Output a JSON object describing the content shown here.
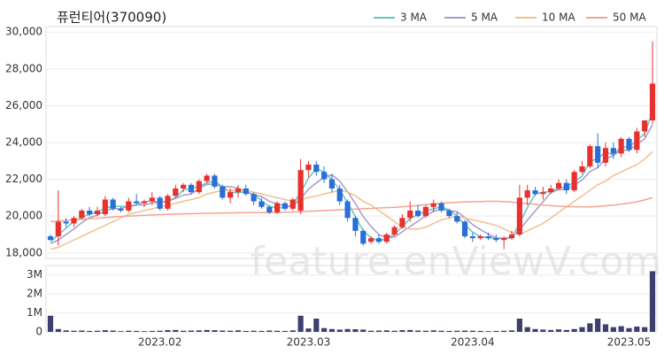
{
  "chart_data": {
    "type": "candlestick",
    "title": "퓨런티어(370090)",
    "watermark": "feature.enViewV.com",
    "legend": "top-right",
    "up_color": "#e8312f",
    "down_color": "#2a6fd6",
    "categories": [
      null,
      null,
      null,
      null,
      null,
      null,
      null,
      null,
      null,
      null,
      null,
      null,
      null,
      null,
      "2023.02",
      null,
      null,
      null,
      null,
      null,
      null,
      null,
      null,
      null,
      null,
      null,
      null,
      null,
      null,
      null,
      null,
      null,
      null,
      "2023.03",
      null,
      null,
      null,
      null,
      null,
      null,
      null,
      null,
      null,
      null,
      null,
      null,
      null,
      null,
      null,
      null,
      null,
      null,
      null,
      null,
      "2023.04",
      null,
      null,
      null,
      null,
      null,
      null,
      null,
      null,
      null,
      null,
      null,
      null,
      null,
      null,
      null,
      null,
      null,
      null,
      null,
      "2023.05",
      null,
      null,
      null
    ],
    "open": [
      18900,
      18900,
      19700,
      19600,
      19900,
      20300,
      20100,
      20100,
      20900,
      20400,
      20300,
      20800,
      20700,
      20800,
      21000,
      20400,
      21100,
      21500,
      21700,
      21300,
      21900,
      22200,
      21600,
      21000,
      21300,
      21500,
      21200,
      20800,
      20500,
      20200,
      20700,
      20400,
      20300,
      22500,
      22800,
      22400,
      22000,
      21500,
      20800,
      19900,
      19200,
      18600,
      18800,
      18600,
      19000,
      19400,
      19900,
      20300,
      20000,
      20500,
      20700,
      20300,
      20000,
      19700,
      18900,
      18800,
      18900,
      18800,
      18700,
      18800,
      19000,
      21000,
      21400,
      21200,
      21300,
      21500,
      21800,
      21400,
      22400,
      22700,
      23800,
      22900,
      23700,
      23400,
      24200,
      23600,
      24600,
      25200
    ],
    "high": [
      19000,
      21400,
      19900,
      20000,
      20400,
      20500,
      20500,
      21100,
      21000,
      20500,
      21000,
      21200,
      20900,
      21300,
      21100,
      21200,
      21700,
      21800,
      21800,
      22000,
      22300,
      22300,
      21700,
      21500,
      21700,
      21700,
      21300,
      21000,
      20600,
      20800,
      20800,
      21000,
      23100,
      23000,
      23000,
      22700,
      22300,
      21700,
      20900,
      20000,
      19300,
      18900,
      19000,
      19100,
      19500,
      20100,
      20800,
      20600,
      20600,
      20900,
      20800,
      20400,
      20200,
      19800,
      19100,
      19000,
      19100,
      19000,
      18900,
      19200,
      21700,
      21700,
      21600,
      21600,
      21700,
      22000,
      22000,
      22500,
      23000,
      23900,
      24500,
      24000,
      24000,
      24300,
      24300,
      24800,
      25200,
      29500
    ],
    "low": [
      18700,
      18400,
      19400,
      19400,
      19800,
      20000,
      20000,
      20000,
      20300,
      20200,
      20200,
      20600,
      20500,
      20600,
      20300,
      20300,
      21000,
      21300,
      21200,
      21200,
      21800,
      21500,
      20900,
      20700,
      21000,
      21100,
      20600,
      20400,
      20100,
      20100,
      20300,
      20300,
      20100,
      22100,
      22200,
      21800,
      21300,
      20600,
      19700,
      18900,
      18400,
      18500,
      18500,
      18500,
      18900,
      19300,
      19700,
      19900,
      19900,
      20200,
      20200,
      19900,
      19600,
      18800,
      18600,
      18700,
      18700,
      18600,
      18200,
      18700,
      18900,
      20600,
      21100,
      20900,
      21200,
      21400,
      21200,
      21300,
      22300,
      22600,
      22600,
      22700,
      23100,
      23200,
      23500,
      23400,
      24300,
      25000
    ],
    "close": [
      18700,
      19700,
      19600,
      19900,
      20300,
      20100,
      20300,
      20900,
      20400,
      20300,
      20800,
      20700,
      20800,
      21000,
      20400,
      21100,
      21500,
      21700,
      21300,
      21900,
      22200,
      21600,
      21000,
      21300,
      21500,
      21200,
      20800,
      20500,
      20200,
      20700,
      20400,
      20900,
      22500,
      22800,
      22400,
      22000,
      21500,
      20800,
      19900,
      19200,
      18500,
      18800,
      18600,
      19000,
      19400,
      19900,
      20300,
      20000,
      20500,
      20700,
      20300,
      20000,
      19700,
      18900,
      18800,
      18900,
      18800,
      18700,
      18800,
      19000,
      21000,
      21400,
      21200,
      21300,
      21500,
      21800,
      21400,
      22400,
      22700,
      23800,
      22900,
      23700,
      23400,
      24200,
      23600,
      24600,
      25200,
      27200
    ],
    "ylim": [
      17700,
      30300
    ],
    "yticks": [
      {
        "value": 18000,
        "label": "18,000"
      },
      {
        "value": 20000,
        "label": "20,000"
      },
      {
        "value": 22000,
        "label": "22,000"
      },
      {
        "value": 24000,
        "label": "24,000"
      },
      {
        "value": 26000,
        "label": "26,000"
      },
      {
        "value": 28000,
        "label": "28,000"
      },
      {
        "value": 30000,
        "label": "30,000"
      }
    ],
    "grid": true,
    "series": [
      {
        "name": "3 MA",
        "color": "#5cc8c8",
        "values": [
          18600,
          19000,
          19330,
          19730,
          19930,
          20100,
          20230,
          20430,
          20530,
          20530,
          20500,
          20600,
          20770,
          20830,
          20730,
          20830,
          21000,
          21430,
          21500,
          21630,
          21800,
          21900,
          21600,
          21300,
          21270,
          21330,
          21170,
          20830,
          20500,
          20470,
          20430,
          20670,
          21270,
          22070,
          22570,
          22400,
          21970,
          21430,
          20730,
          19970,
          19200,
          18830,
          18630,
          18800,
          19000,
          19430,
          19870,
          20070,
          20270,
          20400,
          20500,
          20330,
          20000,
          19530,
          19130,
          18870,
          18830,
          18800,
          18770,
          18830,
          19600,
          20470,
          21200,
          21300,
          21330,
          21530,
          21570,
          21870,
          22170,
          22970,
          23130,
          23470,
          23330,
          23770,
          23730,
          24130,
          24470,
          25670
        ]
      },
      {
        "name": "5 MA",
        "color": "#a99bcb",
        "values": [
          18500,
          18700,
          19000,
          19300,
          19640,
          19920,
          20040,
          20300,
          20400,
          20400,
          20540,
          20620,
          20600,
          20720,
          20740,
          20800,
          20960,
          21140,
          21200,
          21500,
          21720,
          21740,
          21600,
          21600,
          21520,
          21320,
          21160,
          21060,
          20800,
          20680,
          20520,
          20540,
          20940,
          21460,
          21800,
          22120,
          22240,
          21900,
          21320,
          20680,
          19980,
          19440,
          19000,
          18820,
          18860,
          19140,
          19440,
          19720,
          20020,
          20280,
          20360,
          20300,
          20240,
          19920,
          19540,
          19260,
          19020,
          18820,
          18800,
          18840,
          19260,
          19780,
          20280,
          20780,
          21280,
          21440,
          21440,
          21680,
          21960,
          22420,
          22640,
          23100,
          23300,
          23600,
          23560,
          23900,
          24200,
          24960
        ]
      },
      {
        "name": "10 MA",
        "color": "#f0c090",
        "values": [
          18200,
          18300,
          18500,
          18700,
          18900,
          19100,
          19300,
          19500,
          19700,
          19900,
          20100,
          20200,
          20300,
          20400,
          20500,
          20600,
          20700,
          20800,
          20900,
          21000,
          21200,
          21300,
          21400,
          21400,
          21400,
          21400,
          21300,
          21200,
          21100,
          21000,
          20900,
          20800,
          20900,
          21000,
          21100,
          21200,
          21300,
          21400,
          21300,
          21100,
          20800,
          20600,
          20300,
          20000,
          19700,
          19400,
          19300,
          19300,
          19400,
          19600,
          19800,
          19900,
          20000,
          19900,
          19800,
          19700,
          19600,
          19500,
          19300,
          19100,
          19000,
          19200,
          19400,
          19600,
          19900,
          20200,
          20500,
          20800,
          21100,
          21400,
          21700,
          21900,
          22200,
          22400,
          22600,
          22800,
          23100,
          23500
        ]
      },
      {
        "name": "50 MA",
        "color": "#f2a593",
        "values": [
          19700,
          19730,
          19760,
          19800,
          19830,
          19860,
          19890,
          19920,
          19950,
          19980,
          20000,
          20020,
          20040,
          20060,
          20080,
          20100,
          20110,
          20120,
          20130,
          20140,
          20150,
          20160,
          20170,
          20170,
          20180,
          20180,
          20190,
          20190,
          20200,
          20200,
          20210,
          20220,
          20240,
          20260,
          20280,
          20300,
          20320,
          20340,
          20360,
          20380,
          20400,
          20420,
          20440,
          20460,
          20480,
          20500,
          20540,
          20580,
          20620,
          20660,
          20700,
          20730,
          20750,
          20770,
          20780,
          20790,
          20800,
          20800,
          20790,
          20760,
          20720,
          20680,
          20640,
          20600,
          20570,
          20540,
          20520,
          20510,
          20500,
          20500,
          20520,
          20560,
          20600,
          20650,
          20700,
          20780,
          20880,
          21000
        ]
      }
    ],
    "volume": {
      "color": "#3f3f6e",
      "ylim": [
        0,
        3500000
      ],
      "yticks": [
        0,
        {
          "value": 1000000,
          "label": "1M"
        },
        {
          "value": 2000000,
          "label": "2M"
        },
        {
          "value": 3000000,
          "label": "3M"
        }
      ],
      "values": [
        850000,
        150000,
        80000,
        60000,
        70000,
        50000,
        60000,
        90000,
        70000,
        40000,
        60000,
        50000,
        40000,
        50000,
        60000,
        90000,
        100000,
        60000,
        70000,
        80000,
        100000,
        90000,
        70000,
        60000,
        80000,
        50000,
        60000,
        50000,
        70000,
        60000,
        50000,
        80000,
        850000,
        180000,
        700000,
        200000,
        150000,
        120000,
        150000,
        140000,
        120000,
        60000,
        70000,
        80000,
        60000,
        90000,
        100000,
        70000,
        60000,
        80000,
        60000,
        50000,
        60000,
        70000,
        60000,
        50000,
        40000,
        50000,
        60000,
        80000,
        700000,
        250000,
        150000,
        120000,
        100000,
        130000,
        100000,
        150000,
        250000,
        450000,
        700000,
        400000,
        250000,
        300000,
        200000,
        280000,
        250000,
        3200000
      ]
    }
  }
}
